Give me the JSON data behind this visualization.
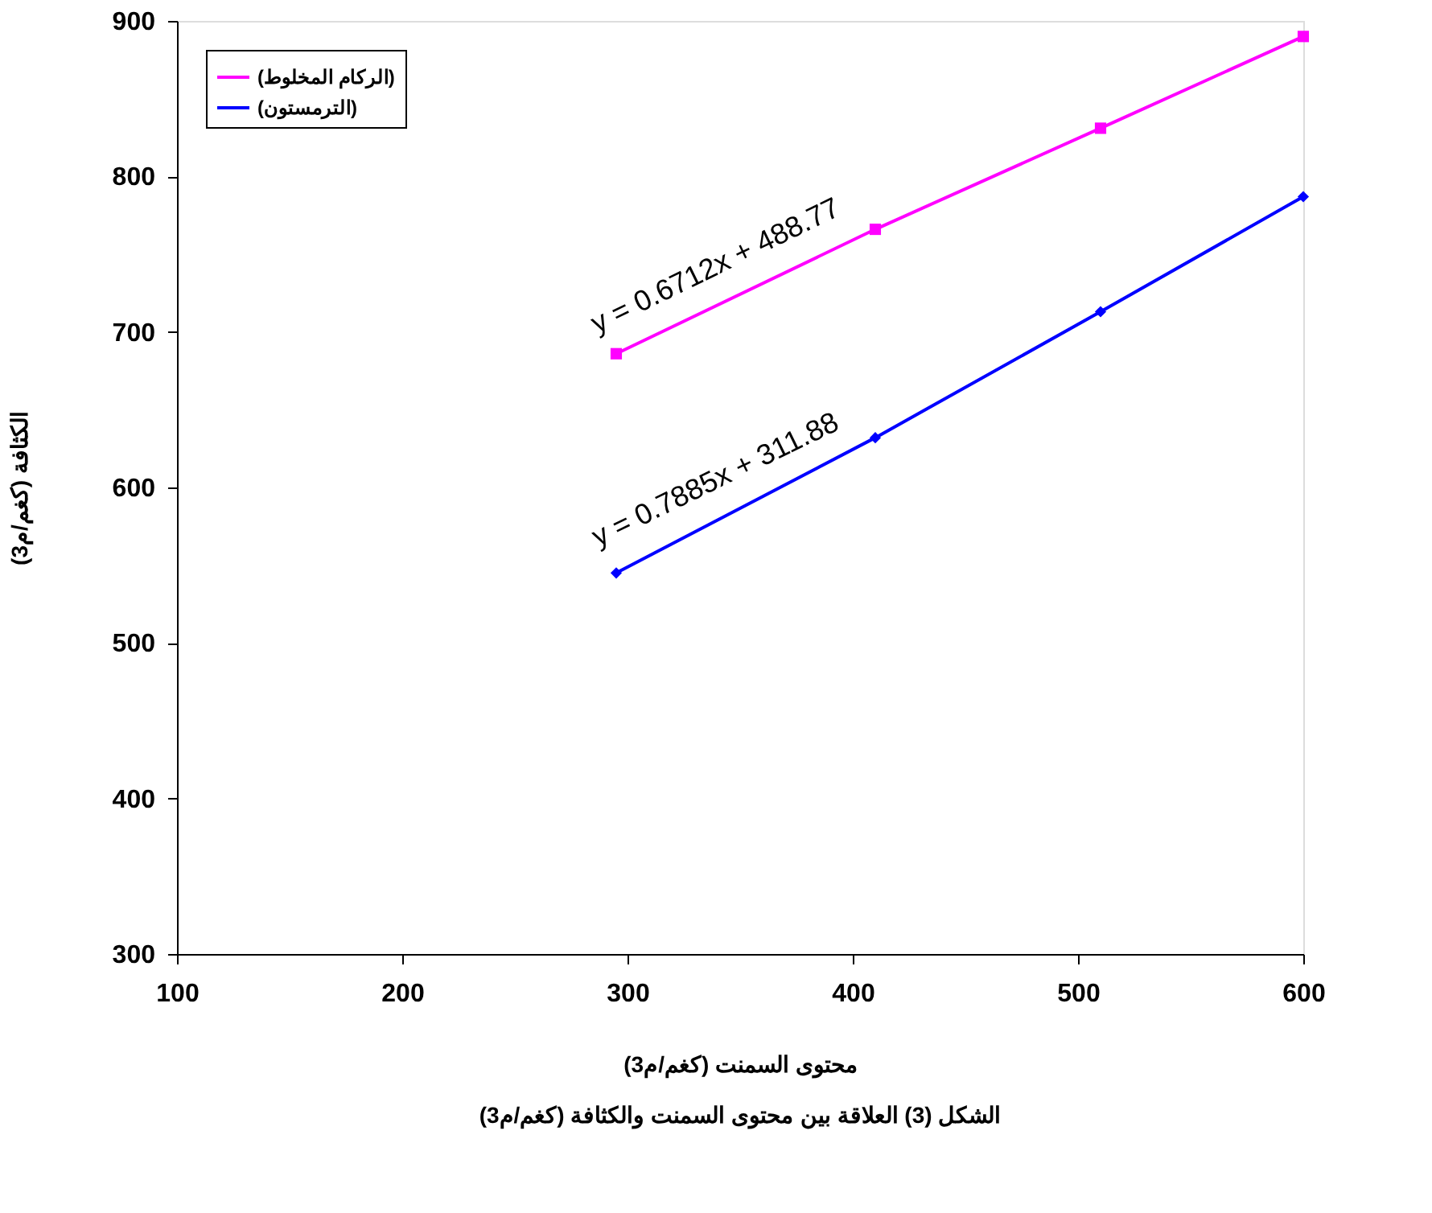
{
  "chart_data": {
    "type": "line",
    "xlabel": "محتوى السمنت (كغم/م3)",
    "ylabel": "الكثافة (كغم/م3)",
    "x": [
      295,
      410,
      510,
      600
    ],
    "series": [
      {
        "name": "(الركام المخلوط)",
        "color": "#ff00ff",
        "marker": "square",
        "values": [
          686,
          766,
          831,
          890
        ]
      },
      {
        "name": "(الترمستون)",
        "color": "#0000ff",
        "marker": "diamond",
        "values": [
          545,
          632,
          713,
          787
        ]
      }
    ],
    "xlim": [
      100,
      600
    ],
    "xticks": [
      100,
      200,
      300,
      400,
      500,
      600
    ],
    "ylim": [
      300,
      900
    ],
    "yticks": [
      300,
      400,
      500,
      600,
      700,
      800,
      900
    ],
    "grid": false,
    "legend": "top left",
    "line_style": "solid",
    "annotations": [
      "y = 0.6712x + 488.77",
      "y = 0.7885x + 311.88",
      "الشكل  (3)   العلاقة بين محتوى السمنت والكثافة (كغم/م3)"
    ]
  }
}
